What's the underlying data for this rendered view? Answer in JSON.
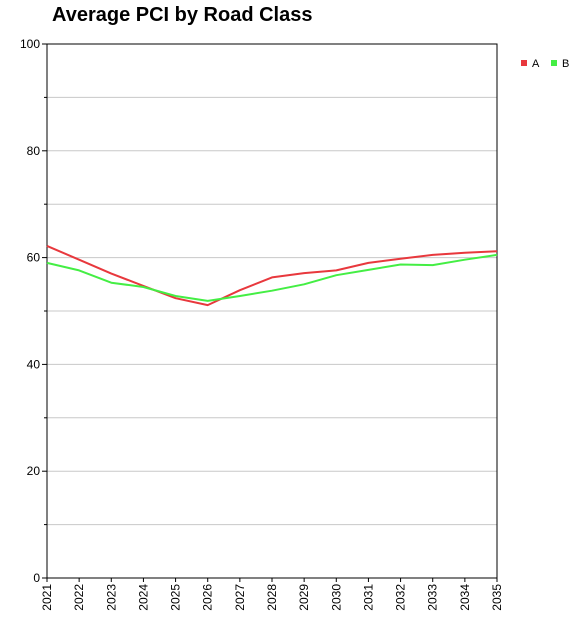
{
  "chart_data": {
    "type": "line",
    "title": "Average PCI by Road Class",
    "xlabel": "",
    "ylabel": "",
    "x": [
      "2021",
      "2022",
      "2023",
      "2024",
      "2025",
      "2026",
      "2027",
      "2028",
      "2029",
      "2030",
      "2031",
      "2032",
      "2033",
      "2034",
      "2035"
    ],
    "ylim": [
      0,
      100
    ],
    "yticks": [
      0,
      20,
      40,
      60,
      80,
      100
    ],
    "grid": true,
    "legend": "top-right",
    "series": [
      {
        "name": "A",
        "color": "#e8383d",
        "values": [
          62.2,
          59.6,
          57.0,
          54.7,
          52.4,
          51.1,
          53.9,
          56.3,
          57.1,
          57.6,
          59.0,
          59.8,
          60.5,
          60.9,
          61.2
        ]
      },
      {
        "name": "B",
        "color": "#44ee44",
        "values": [
          59.0,
          57.6,
          55.3,
          54.5,
          52.8,
          51.9,
          52.8,
          53.8,
          55.0,
          56.7,
          57.7,
          58.7,
          58.6,
          59.6,
          60.5
        ]
      }
    ]
  }
}
